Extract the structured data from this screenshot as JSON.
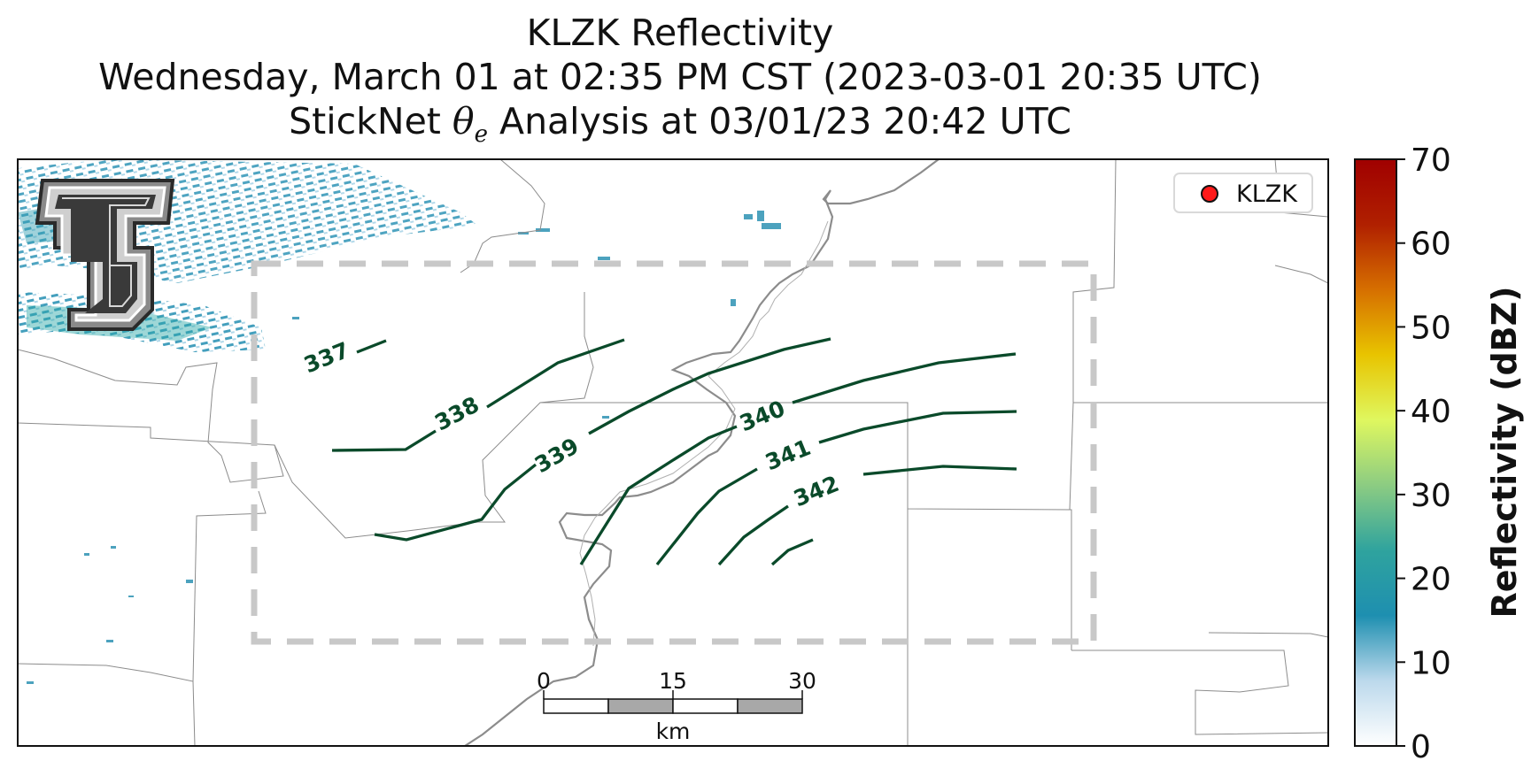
{
  "title": {
    "line1": "KLZK Reflectivity",
    "line2": "Wednesday, March 01 at 02:35 PM CST (2023-03-01 20:35 UTC)",
    "line3_prefix": "StickNet ",
    "line3_symbol": "θ",
    "line3_subscript": "e",
    "line3_suffix": " Analysis at 03/01/23 20:42 UTC"
  },
  "legend": {
    "marker_color": "#ff1a1a",
    "label": "KLZK",
    "placement": "top-right"
  },
  "logo": {
    "name": "texas-tech-double-t-logo"
  },
  "contours": {
    "color": "#0a4a2a",
    "levels": [
      "337",
      "338",
      "339",
      "340",
      "341",
      "342"
    ]
  },
  "analysis_box": {
    "style": "dashed",
    "color": "#c8c8c8"
  },
  "scale_bar": {
    "ticks": [
      "0",
      "15",
      "30"
    ],
    "unit": "km"
  },
  "colorbar": {
    "label": "Reflectivity (dBZ)",
    "min": 0,
    "max": 70,
    "ticks": [
      "0",
      "10",
      "20",
      "30",
      "40",
      "50",
      "60",
      "70"
    ],
    "colors": [
      "#ffffff",
      "#bcd9ec",
      "#1e8fb0",
      "#2fa39e",
      "#8ccc82",
      "#dff75f",
      "#e8c400",
      "#d66f00",
      "#b02000",
      "#a00000"
    ]
  }
}
